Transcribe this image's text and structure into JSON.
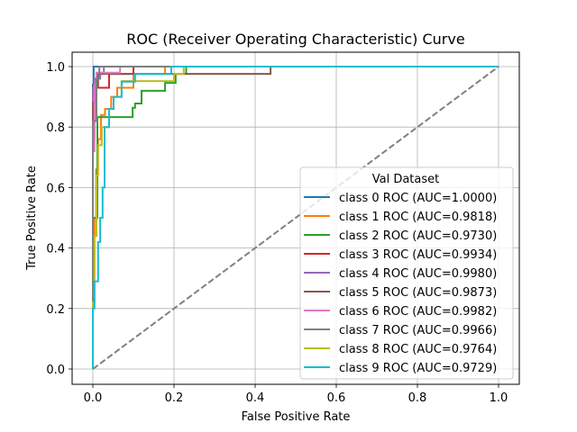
{
  "chart_data": {
    "type": "line",
    "title": "ROC (Receiver Operating Characteristic) Curve",
    "xlabel": "False Positive Rate",
    "ylabel": "True Positive Rate",
    "xlim": [
      -0.05,
      1.05
    ],
    "ylim": [
      -0.05,
      1.05
    ],
    "xticks": [
      0.0,
      0.2,
      0.4,
      0.6,
      0.8,
      1.0
    ],
    "yticks": [
      0.0,
      0.2,
      0.4,
      0.6,
      0.8,
      1.0
    ],
    "xtick_labels": [
      "0.0",
      "0.2",
      "0.4",
      "0.6",
      "0.8",
      "1.0"
    ],
    "ytick_labels": [
      "0.0",
      "0.2",
      "0.4",
      "0.6",
      "0.8",
      "1.0"
    ],
    "grid": true,
    "legend": {
      "title": "Val Dataset",
      "placement": "lower-right"
    },
    "diagonal": {
      "x": [
        0,
        1
      ],
      "y": [
        0,
        1
      ],
      "color": "#808080",
      "style": "dashed"
    },
    "series": [
      {
        "name": "class 0 ROC (AUC=1.0000)",
        "color": "#1f77b4",
        "x": [
          0,
          0,
          0.002,
          0.002,
          1
        ],
        "y": [
          0,
          0.94,
          0.94,
          1.0,
          1.0
        ]
      },
      {
        "name": "class 1 ROC (AUC=0.9818)",
        "color": "#ff7f0e",
        "x": [
          0,
          0,
          0.004,
          0.004,
          0.008,
          0.008,
          0.013,
          0.013,
          0.02,
          0.02,
          0.03,
          0.03,
          0.045,
          0.045,
          0.06,
          0.06,
          0.1,
          0.1,
          0.178,
          0.178,
          1
        ],
        "y": [
          0,
          0.3,
          0.3,
          0.5,
          0.5,
          0.66,
          0.66,
          0.76,
          0.76,
          0.84,
          0.84,
          0.86,
          0.86,
          0.9,
          0.9,
          0.93,
          0.93,
          0.976,
          0.976,
          1.0,
          1.0
        ]
      },
      {
        "name": "class 2 ROC (AUC=0.9730)",
        "color": "#2ca02c",
        "x": [
          0,
          0,
          0.011,
          0.011,
          0.098,
          0.098,
          0.104,
          0.104,
          0.12,
          0.12,
          0.178,
          0.178,
          0.204,
          0.204,
          0.23,
          0.23,
          1
        ],
        "y": [
          0,
          0.5,
          0.5,
          0.833,
          0.833,
          0.864,
          0.864,
          0.878,
          0.878,
          0.92,
          0.92,
          0.946,
          0.946,
          0.976,
          0.976,
          1.0,
          1.0
        ]
      },
      {
        "name": "class 3 ROC (AUC=0.9934)",
        "color": "#d62728",
        "x": [
          0,
          0,
          0.004,
          0.004,
          0.009,
          0.009,
          0.04,
          0.04,
          0.1,
          0.1,
          1
        ],
        "y": [
          0,
          0.76,
          0.76,
          0.9,
          0.9,
          0.93,
          0.93,
          0.976,
          0.976,
          1.0,
          1.0
        ]
      },
      {
        "name": "class 4 ROC (AUC=0.9980)",
        "color": "#9467bd",
        "x": [
          0,
          0,
          0.004,
          0.004,
          0.018,
          0.018,
          0.027,
          0.027,
          1
        ],
        "y": [
          0,
          0.93,
          0.93,
          0.96,
          0.96,
          0.976,
          0.976,
          1.0,
          1.0
        ]
      },
      {
        "name": "class 5 ROC (AUC=0.9873)",
        "color": "#8c564b",
        "x": [
          0,
          0,
          0.007,
          0.007,
          0.013,
          0.013,
          0.438,
          0.438,
          1
        ],
        "y": [
          0,
          0.88,
          0.88,
          0.93,
          0.93,
          0.976,
          0.976,
          1.0,
          1.0
        ]
      },
      {
        "name": "class 6 ROC (AUC=0.9982)",
        "color": "#e377c2",
        "x": [
          0,
          0,
          0.004,
          0.004,
          0.009,
          0.009,
          0.067,
          0.067,
          1
        ],
        "y": [
          0,
          0.72,
          0.72,
          0.94,
          0.94,
          0.98,
          0.98,
          1.0,
          1.0
        ]
      },
      {
        "name": "class 7 ROC (AUC=0.9966)",
        "color": "#7f7f7f",
        "x": [
          0,
          0,
          0.009,
          0.009,
          0.016,
          0.016,
          1
        ],
        "y": [
          0,
          0.82,
          0.82,
          0.96,
          0.96,
          1.0,
          1.0
        ]
      },
      {
        "name": "class 8 ROC (AUC=0.9764)",
        "color": "#bcbd22",
        "x": [
          0,
          0,
          0.004,
          0.004,
          0.009,
          0.009,
          0.013,
          0.013,
          0.022,
          0.022,
          0.04,
          0.04,
          0.051,
          0.051,
          0.071,
          0.071,
          0.2,
          0.2,
          0.224,
          0.224,
          1
        ],
        "y": [
          0,
          0.22,
          0.22,
          0.44,
          0.44,
          0.64,
          0.64,
          0.74,
          0.74,
          0.8,
          0.8,
          0.86,
          0.86,
          0.9,
          0.9,
          0.952,
          0.952,
          0.976,
          0.976,
          1.0,
          1.0
        ]
      },
      {
        "name": "class 9 ROC (AUC=0.9729)",
        "color": "#17becf",
        "x": [
          0,
          0,
          0.004,
          0.004,
          0.013,
          0.013,
          0.018,
          0.018,
          0.024,
          0.024,
          0.029,
          0.029,
          0.04,
          0.04,
          0.051,
          0.051,
          0.071,
          0.071,
          0.104,
          0.104,
          0.193,
          0.193,
          1
        ],
        "y": [
          0,
          0.2,
          0.2,
          0.29,
          0.29,
          0.42,
          0.42,
          0.5,
          0.5,
          0.6,
          0.6,
          0.8,
          0.8,
          0.86,
          0.86,
          0.9,
          0.9,
          0.95,
          0.95,
          0.976,
          0.976,
          1.0,
          1.0
        ]
      }
    ]
  }
}
